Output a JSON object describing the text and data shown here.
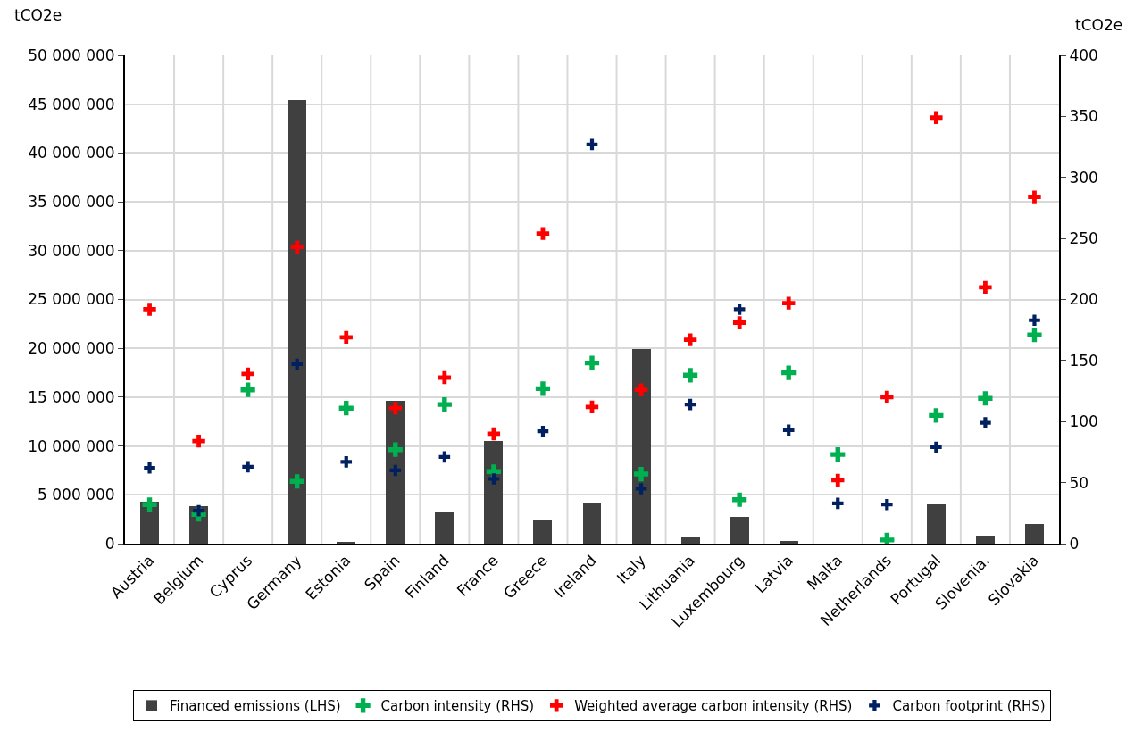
{
  "chart_data": {
    "type": "bar",
    "ylabel": "tCO2e",
    "y2label": "tCO2e",
    "categories": [
      "Austria",
      "Belgium",
      "Cyprus",
      "Germany",
      "Estonia",
      "Spain",
      "Finland",
      "France",
      "Greece",
      "Ireland",
      "Italy",
      "Lithuania",
      "Luxembourg",
      "Latvia",
      "Malta",
      "Netherlands",
      "Portugal",
      "Slovenia.",
      "Slovakia"
    ],
    "series": [
      {
        "name": "Financed emissions (LHS)",
        "color": "#404040",
        "values": [
          4300000,
          3800000,
          0,
          45400000,
          100000,
          14600000,
          3200000,
          10500000,
          2400000,
          4100000,
          19900000,
          700000,
          2700000,
          300000,
          0,
          0,
          4000000,
          800000,
          2000000
        ]
      },
      {
        "name": "Carbon intensity (RHS)",
        "type": "scatter",
        "axis": "y2",
        "color": "#00b050",
        "values": [
          32,
          24,
          126,
          51,
          111,
          77,
          114,
          59,
          127,
          148,
          57,
          138,
          36,
          140,
          73,
          3,
          105,
          119,
          171
        ]
      },
      {
        "name": "Weighted average carbon intensity (RHS)",
        "type": "scatter",
        "axis": "y2",
        "color": "#ff0000",
        "values": [
          192,
          84,
          139,
          243,
          169,
          111,
          136,
          90,
          254,
          112,
          126,
          167,
          181,
          197,
          52,
          120,
          349,
          210,
          284
        ]
      },
      {
        "name": "Carbon footprint (RHS)",
        "type": "scatter",
        "axis": "y2",
        "color": "#002060",
        "values": [
          62,
          27,
          63,
          147,
          67,
          60,
          71,
          53,
          92,
          327,
          45,
          114,
          192,
          93,
          33,
          32,
          79,
          99,
          183
        ]
      }
    ],
    "ylim": [
      0,
      50000000
    ],
    "yticks": [
      {
        "value": 0,
        "label": "0"
      },
      {
        "value": 5000000,
        "label": "5 000 000"
      },
      {
        "value": 10000000,
        "label": "10 000 000"
      },
      {
        "value": 15000000,
        "label": "15 000 000"
      },
      {
        "value": 20000000,
        "label": "20 000 000"
      },
      {
        "value": 25000000,
        "label": "25 000 000"
      },
      {
        "value": 30000000,
        "label": "30 000 000"
      },
      {
        "value": 35000000,
        "label": "35 000 000"
      },
      {
        "value": 40000000,
        "label": "40 000 000"
      },
      {
        "value": 45000000,
        "label": "45 000 000"
      },
      {
        "value": 50000000,
        "label": "50 000 000"
      }
    ],
    "y2lim": [
      0,
      400
    ],
    "y2ticks": [
      0,
      50,
      100,
      150,
      200,
      250,
      300,
      350,
      400
    ],
    "marker": "cross",
    "grid": true,
    "legend": "bottom"
  }
}
